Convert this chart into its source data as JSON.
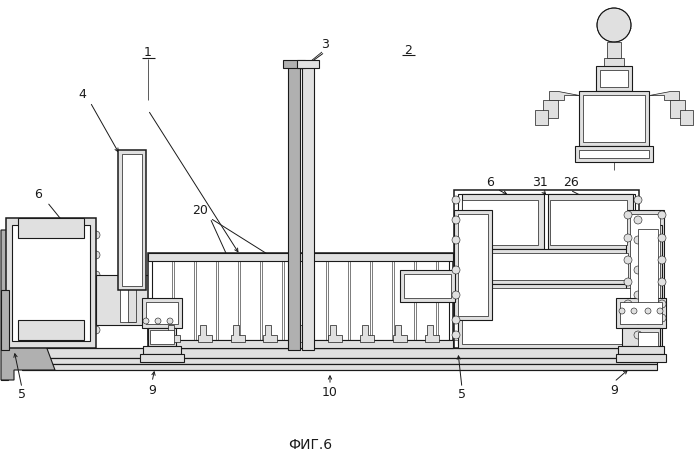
{
  "bg_color": "#ffffff",
  "title": "ФИГ.6",
  "title_fontsize": 10,
  "label_fontsize": 9,
  "line_color": "#1a1a1a",
  "lw_thin": 0.5,
  "lw_med": 0.8,
  "lw_thick": 1.1,
  "gray_fill": "#c8c8c8",
  "light_gray": "#e0e0e0",
  "mid_gray": "#b0b0b0"
}
